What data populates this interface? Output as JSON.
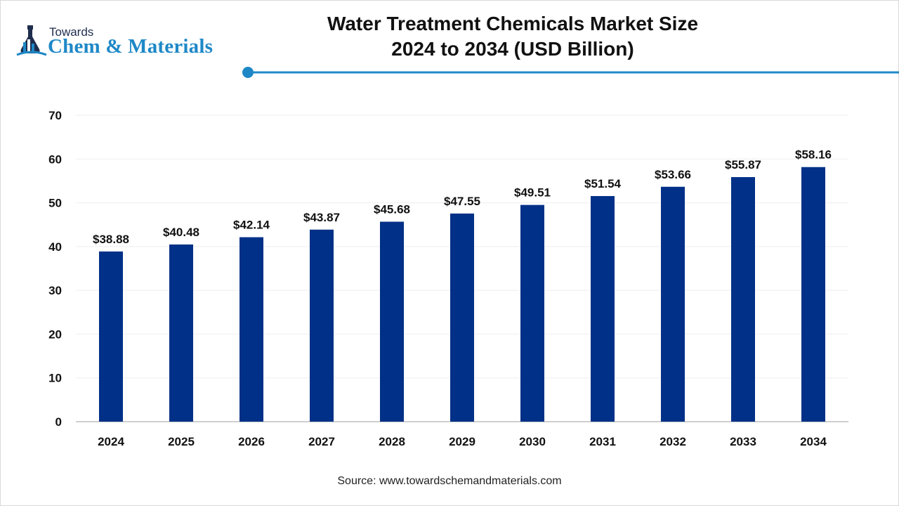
{
  "brand": {
    "line1": "Towards",
    "line2": "Chem & Materials"
  },
  "title": {
    "line1": "Water Treatment Chemicals Market Size",
    "line2": "2024 to 2034 (USD Billion)"
  },
  "source": "Source: www.towardschemandmaterials.com",
  "colors": {
    "bar": "#003087",
    "accent": "#1e88c7",
    "grid": "#eeeeee"
  },
  "chart_data": {
    "type": "bar",
    "title": "Water Treatment Chemicals Market Size 2024 to 2034 (USD Billion)",
    "categories": [
      "2024",
      "2025",
      "2026",
      "2027",
      "2028",
      "2029",
      "2030",
      "2031",
      "2032",
      "2033",
      "2034"
    ],
    "values": [
      38.88,
      40.48,
      42.14,
      43.87,
      45.68,
      47.55,
      49.51,
      51.54,
      53.66,
      55.87,
      58.16
    ],
    "data_labels": [
      "$38.88",
      "$40.48",
      "$42.14",
      "$43.87",
      "$45.68",
      "$47.55",
      "$49.51",
      "$51.54",
      "$53.66",
      "$55.87",
      "$58.16"
    ],
    "yticks": [
      "0",
      "10",
      "20",
      "30",
      "40",
      "50",
      "60",
      "70"
    ],
    "ylim": [
      0,
      70
    ],
    "xlabel": "",
    "ylabel": "",
    "grid": true,
    "legend": "none"
  }
}
